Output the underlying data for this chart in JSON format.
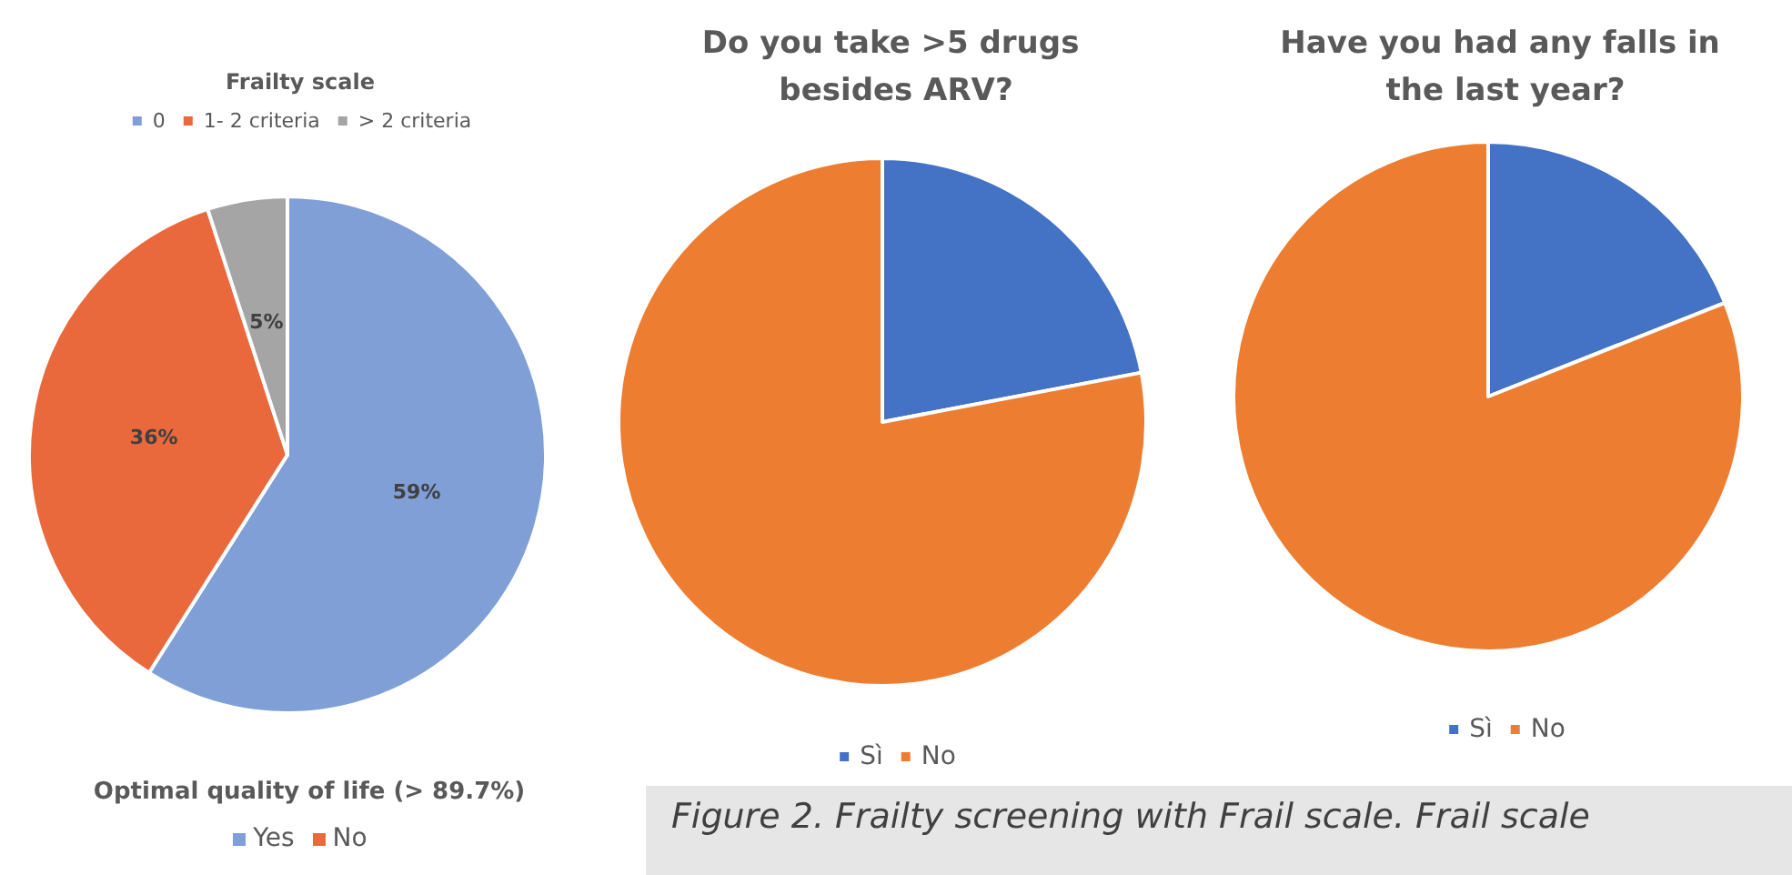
{
  "chart_data": [
    {
      "type": "pie",
      "title": "Frailty scale",
      "categories": [
        "0",
        "1- 2 criteria",
        "> 2 criteria"
      ],
      "values": [
        59,
        36,
        5
      ],
      "colors": [
        "#7f9fd6",
        "#e9693c",
        "#a5a5a5"
      ],
      "value_labels": [
        "59%",
        "36%",
        "5%"
      ],
      "legend": "top"
    },
    {
      "type": "pie",
      "title": "Do you take >5 drugs besides ARV?",
      "categories": [
        "Sì",
        "No"
      ],
      "values": [
        22,
        78
      ],
      "colors": [
        "#4472c4",
        "#ed7d31"
      ],
      "legend": "bottom"
    },
    {
      "type": "pie",
      "title": "Have you had any falls in the last year?",
      "categories": [
        "Sì",
        "No"
      ],
      "values": [
        19,
        81
      ],
      "colors": [
        "#4472c4",
        "#ed7d31"
      ],
      "legend": "bottom"
    },
    {
      "type": "other",
      "title": "Optimal quality of life (> 89.7%)",
      "categories": [
        "Yes",
        "No"
      ],
      "colors": [
        "#7f9fd6",
        "#e9693c"
      ]
    },
    {
      "type": "other",
      "annotations": [
        "Figure 2. Frailty screening with Frail scale. Frail scale"
      ]
    }
  ]
}
